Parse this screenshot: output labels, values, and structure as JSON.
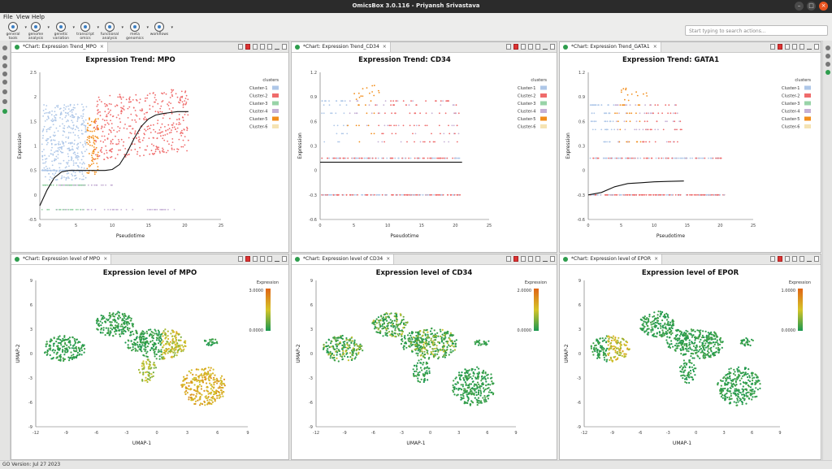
{
  "window": {
    "title": "OmicsBox 3.0.116 - Priyansh Srivastava"
  },
  "menu": [
    "File",
    "View",
    "Help"
  ],
  "toolbar": {
    "tools": [
      {
        "label": "general tools",
        "icon": "general-tools-icon"
      },
      {
        "label": "genome analysis",
        "icon": "genome-analysis-icon"
      },
      {
        "label": "genetic variation",
        "icon": "genetic-variation-icon"
      },
      {
        "label": "transcript omics",
        "icon": "transcriptomics-icon"
      },
      {
        "label": "functional analysis",
        "icon": "functional-analysis-icon"
      },
      {
        "label": "meta genomics",
        "icon": "metagenomics-icon"
      },
      {
        "label": "workflows",
        "icon": "workflows-icon"
      }
    ],
    "search_placeholder": "Start typing to search actions..."
  },
  "status": {
    "text": "GO Version: Jul 27 2023"
  },
  "colors": {
    "cluster": [
      "#aec7e8",
      "#ef6b6b",
      "#98d3a8",
      "#c5b0d5",
      "#f28e1c",
      "#f5e3b3"
    ],
    "accent": "#2e9d4d"
  },
  "panels": [
    {
      "tab": "*Chart: Expression Trend_MPO"
    },
    {
      "tab": "*Chart: Expression Trend_CD34"
    },
    {
      "tab": "*Chart: Expression Trend_GATA1"
    },
    {
      "tab": "*Chart: Expression level of MPO"
    },
    {
      "tab": "*Chart: Expression level of CD34"
    },
    {
      "tab": "*Chart: Expression level of EPOR"
    }
  ],
  "chart_data": [
    {
      "type": "scatter",
      "title": "Expression Trend: MPO",
      "xlabel": "Pseudotime",
      "ylabel": "Expression",
      "xlim": [
        0,
        25
      ],
      "ylim": [
        -0.5,
        2.5
      ],
      "xticks": [
        "0",
        "5",
        "10",
        "15",
        "20",
        "25"
      ],
      "yticks": [
        "-0.5",
        "0",
        "0.5",
        "1",
        "1.5",
        "2",
        "2.5"
      ],
      "legend_title": "clusters",
      "legend": [
        "Cluster-1",
        "Cluster-2",
        "Cluster-3",
        "Cluster-4",
        "Cluster-5",
        "Cluster-6"
      ],
      "legend_position": "top-right",
      "trend": {
        "x": [
          0,
          1,
          2,
          3,
          4,
          5,
          6,
          7,
          8,
          9,
          10,
          11,
          12,
          13,
          14,
          15,
          16,
          17,
          18,
          19,
          20.5
        ],
        "y": [
          -0.22,
          0.1,
          0.35,
          0.47,
          0.5,
          0.5,
          0.5,
          0.5,
          0.5,
          0.5,
          0.52,
          0.62,
          0.85,
          1.15,
          1.4,
          1.55,
          1.63,
          1.66,
          1.68,
          1.7,
          1.7
        ]
      }
    },
    {
      "type": "scatter",
      "title": "Expression Trend: CD34",
      "xlabel": "Pseudotime",
      "ylabel": "Expression",
      "xlim": [
        0,
        25
      ],
      "ylim": [
        -0.6,
        1.2
      ],
      "xticks": [
        "0",
        "5",
        "10",
        "15",
        "20",
        "25"
      ],
      "yticks": [
        "-0.6",
        "-0.3",
        "0",
        "0.3",
        "0.6",
        "0.9",
        "1.2"
      ],
      "legend_title": "clusters",
      "legend": [
        "Cluster-1",
        "Cluster-2",
        "Cluster-3",
        "Cluster-4",
        "Cluster-5",
        "Cluster-6"
      ],
      "legend_position": "top-right",
      "trend": {
        "x": [
          0,
          21
        ],
        "y": [
          0.1,
          0.1
        ]
      }
    },
    {
      "type": "scatter",
      "title": "Expression Trend: GATA1",
      "xlabel": "Pseudotime",
      "ylabel": "Expression",
      "xlim": [
        0,
        25
      ],
      "ylim": [
        -0.6,
        1.2
      ],
      "xticks": [
        "0",
        "5",
        "10",
        "15",
        "20",
        "25"
      ],
      "yticks": [
        "-0.6",
        "-0.3",
        "0",
        "0.3",
        "0.6",
        "0.9",
        "1.2"
      ],
      "legend_title": "clusters",
      "legend": [
        "Cluster-1",
        "Cluster-2",
        "Cluster-3",
        "Cluster-4",
        "Cluster-5",
        "Cluster-6"
      ],
      "legend_position": "top-right",
      "trend": {
        "x": [
          0,
          2,
          4,
          6,
          8,
          10,
          12,
          14.5
        ],
        "y": [
          -0.3,
          -0.27,
          -0.2,
          -0.16,
          -0.15,
          -0.14,
          -0.135,
          -0.13
        ]
      }
    },
    {
      "type": "scatter",
      "title": "Expression level of MPO",
      "xlabel": "UMAP-1",
      "ylabel": "UMAP-2",
      "xlim": [
        -12,
        9
      ],
      "ylim": [
        -9,
        9
      ],
      "xticks": [
        "-12",
        "-9",
        "-6",
        "-3",
        "0",
        "3",
        "6",
        "9"
      ],
      "yticks": [
        "-9",
        "-6",
        "-3",
        "0",
        "3",
        "6",
        "9"
      ],
      "colorbar_title": "Expression",
      "colorbar_max": "3.0000",
      "colorbar_min": "0.0000",
      "legend_position": "top-right"
    },
    {
      "type": "scatter",
      "title": "Expression level of CD34",
      "xlabel": "UMAP-1",
      "ylabel": "UMAP-2",
      "xlim": [
        -12,
        9
      ],
      "ylim": [
        -9,
        9
      ],
      "xticks": [
        "-12",
        "-9",
        "-6",
        "-3",
        "0",
        "3",
        "6",
        "9"
      ],
      "yticks": [
        "-9",
        "-6",
        "-3",
        "0",
        "3",
        "6",
        "9"
      ],
      "colorbar_title": "Expression",
      "colorbar_max": "2.0000",
      "colorbar_min": "0.0000",
      "legend_position": "top-right"
    },
    {
      "type": "scatter",
      "title": "Expression level of EPOR",
      "xlabel": "UMAP-1",
      "ylabel": "UMAP-2",
      "xlim": [
        -12,
        9
      ],
      "ylim": [
        -9,
        9
      ],
      "xticks": [
        "-12",
        "-9",
        "-6",
        "-3",
        "0",
        "3",
        "6",
        "9"
      ],
      "yticks": [
        "-9",
        "-6",
        "-3",
        "0",
        "3",
        "6",
        "9"
      ],
      "colorbar_title": "Expression",
      "colorbar_max": "1.0000",
      "colorbar_min": "0.0000",
      "legend_position": "top-right"
    }
  ]
}
